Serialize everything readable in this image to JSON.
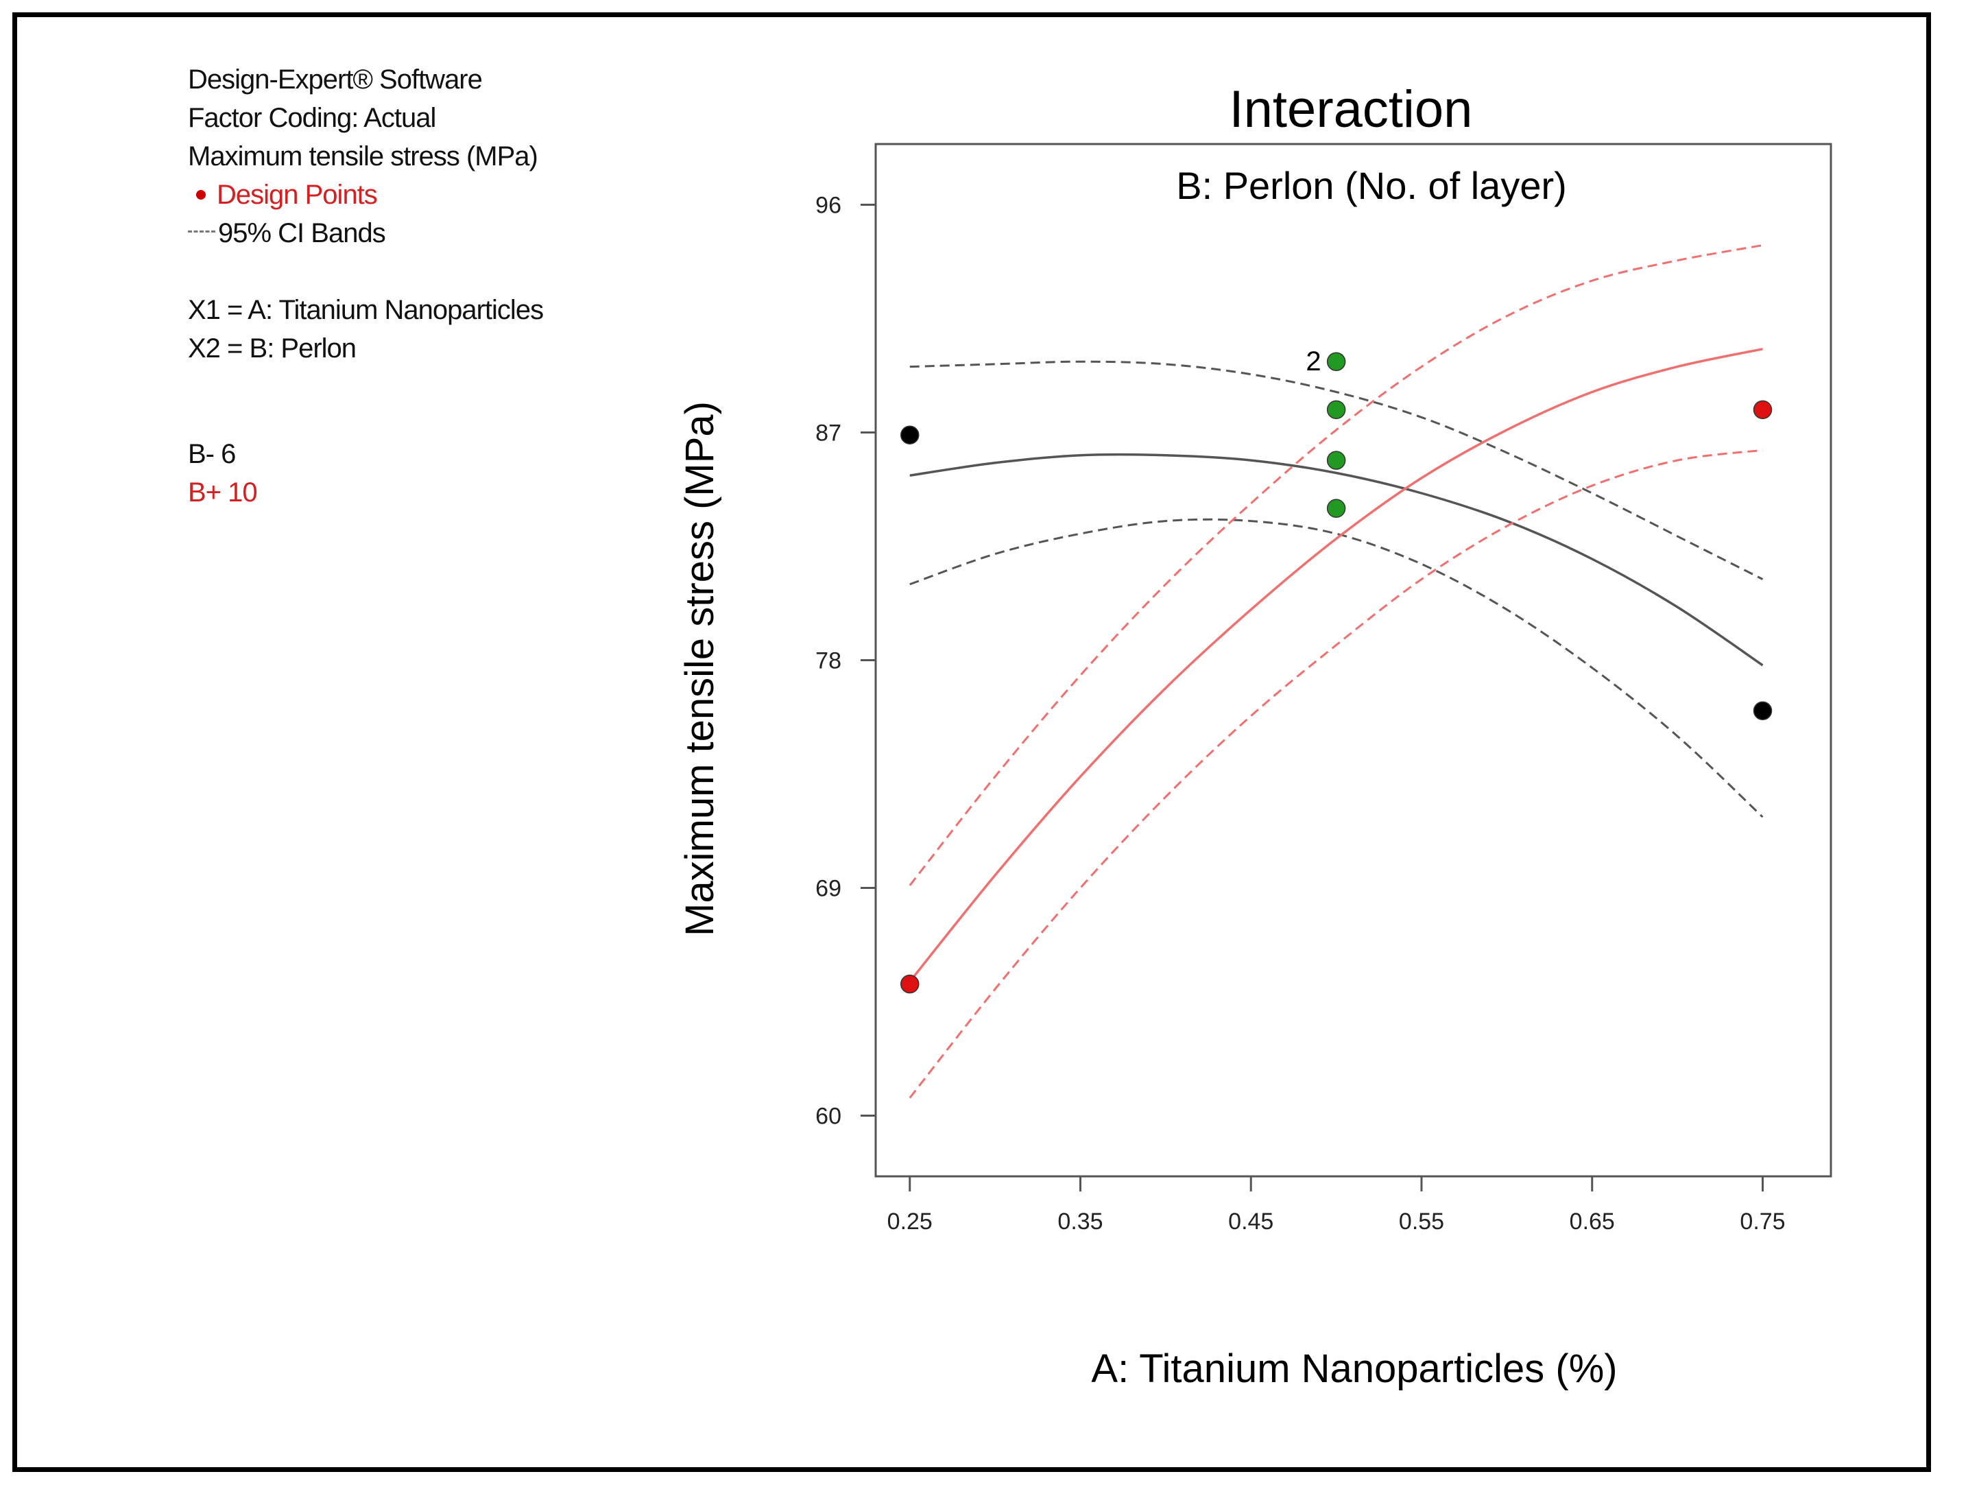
{
  "legend": {
    "software": "Design-Expert® Software",
    "coding": "Factor Coding: Actual",
    "response": "Maximum tensile stress (MPa)",
    "design_points": "Design Points",
    "ci_bands": "95% CI Bands",
    "x1": "X1 = A: Titanium Nanoparticles",
    "x2": "X2 = B: Perlon",
    "b_minus": "B- 6",
    "b_plus": "B+ 10"
  },
  "colors": {
    "b_minus_line": "#555555",
    "b_plus_line": "#f07070",
    "design_red": "#dd1111",
    "design_black": "#000000",
    "center_green": "#229922"
  },
  "chart_data": {
    "type": "line",
    "title": "Interaction",
    "subtitle": "B: Perlon (No. of layer)",
    "xlabel": "A: Titanium Nanoparticles (%)",
    "ylabel": "Maximum tensile stress (MPa)",
    "xlim": [
      0.23,
      0.79
    ],
    "ylim": [
      57.6,
      98.4
    ],
    "xticks": [
      0.25,
      0.35,
      0.45,
      0.55,
      0.65,
      0.75
    ],
    "xtick_labels": [
      "0.25",
      "0.35",
      "0.45",
      "0.55",
      "0.65",
      "0.75"
    ],
    "yticks": [
      60,
      69,
      78,
      87,
      96
    ],
    "ytick_labels": [
      "60",
      "69",
      "78",
      "87",
      "96"
    ],
    "series": [
      {
        "name": "B- 6",
        "x": [
          0.25,
          0.3,
          0.35,
          0.4,
          0.45,
          0.5,
          0.55,
          0.6,
          0.65,
          0.7,
          0.75
        ],
        "y": [
          85.3,
          85.8,
          86.1,
          86.1,
          85.9,
          85.4,
          84.6,
          83.5,
          82.0,
          80.1,
          77.8
        ],
        "lower": [
          81.0,
          82.2,
          83.0,
          83.5,
          83.5,
          83.0,
          81.8,
          80.0,
          77.7,
          75.0,
          71.8
        ],
        "upper": [
          89.6,
          89.7,
          89.8,
          89.7,
          89.3,
          88.6,
          87.6,
          86.2,
          84.6,
          82.9,
          81.2
        ]
      },
      {
        "name": "B+ 10",
        "x": [
          0.25,
          0.3,
          0.35,
          0.4,
          0.45,
          0.5,
          0.55,
          0.6,
          0.65,
          0.7,
          0.75
        ],
        "y": [
          65.3,
          69.5,
          73.4,
          76.9,
          80.0,
          82.8,
          85.2,
          87.1,
          88.6,
          89.6,
          90.3
        ],
        "lower": [
          60.7,
          65.0,
          69.0,
          72.6,
          75.8,
          78.6,
          81.2,
          83.3,
          84.9,
          85.9,
          86.3
        ],
        "upper": [
          69.1,
          73.4,
          77.4,
          81.0,
          84.2,
          87.1,
          89.6,
          91.6,
          93.0,
          93.8,
          94.4
        ]
      }
    ],
    "design_points": [
      {
        "x": 0.25,
        "y": 86.9,
        "group": "B- 6"
      },
      {
        "x": 0.75,
        "y": 76.0,
        "group": "B- 6"
      },
      {
        "x": 0.25,
        "y": 65.2,
        "group": "B+ 10"
      },
      {
        "x": 0.75,
        "y": 87.9,
        "group": "B+ 10"
      },
      {
        "x": 0.5,
        "y": 89.8,
        "group": "center",
        "label": "2"
      },
      {
        "x": 0.5,
        "y": 87.9,
        "group": "center"
      },
      {
        "x": 0.5,
        "y": 85.9,
        "group": "center"
      },
      {
        "x": 0.5,
        "y": 84.0,
        "group": "center"
      }
    ]
  }
}
